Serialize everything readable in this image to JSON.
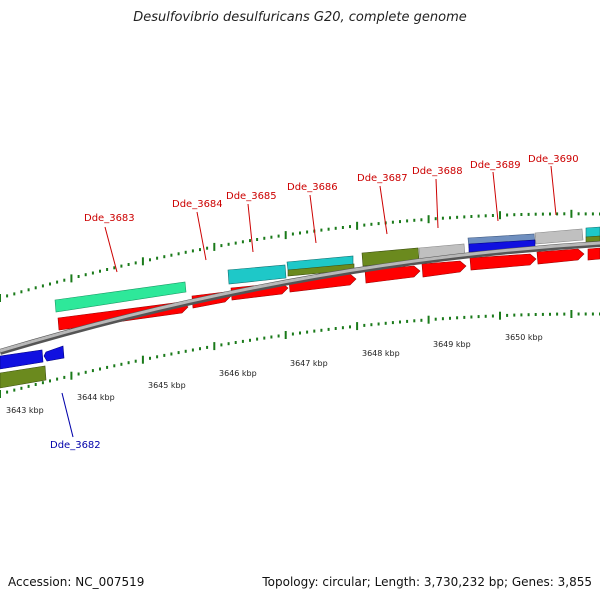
{
  "title": "Desulfovibrio desulfuricans G20, complete genome",
  "footer": {
    "accession": "Accession: NC_007519",
    "stats": "Topology: circular; Length: 3,730,232 bp; Genes: 3,855"
  },
  "colors": {
    "backbone": "#909090",
    "tick": "#1a7a1a",
    "cds_red": "#ff0000",
    "cds_green_light": "#2ee89a",
    "cds_cyan": "#1ec8c8",
    "cds_olive": "#6b8a1e",
    "cds_grey": "#c0c0c0",
    "cds_blue": "#1010e0"
  },
  "kbp_labels": [
    "3643 kbp",
    "3644 kbp",
    "3645 kbp",
    "3646 kbp",
    "3647 kbp",
    "3648 kbp",
    "3649 kbp",
    "3650 kbp"
  ],
  "gene_labels_top": [
    "Dde_3683",
    "Dde_3684",
    "Dde_3685",
    "Dde_3686",
    "Dde_3687",
    "Dde_3688",
    "Dde_3689",
    "Dde_3690"
  ],
  "gene_labels_bottom": [
    "Dde_3682"
  ]
}
